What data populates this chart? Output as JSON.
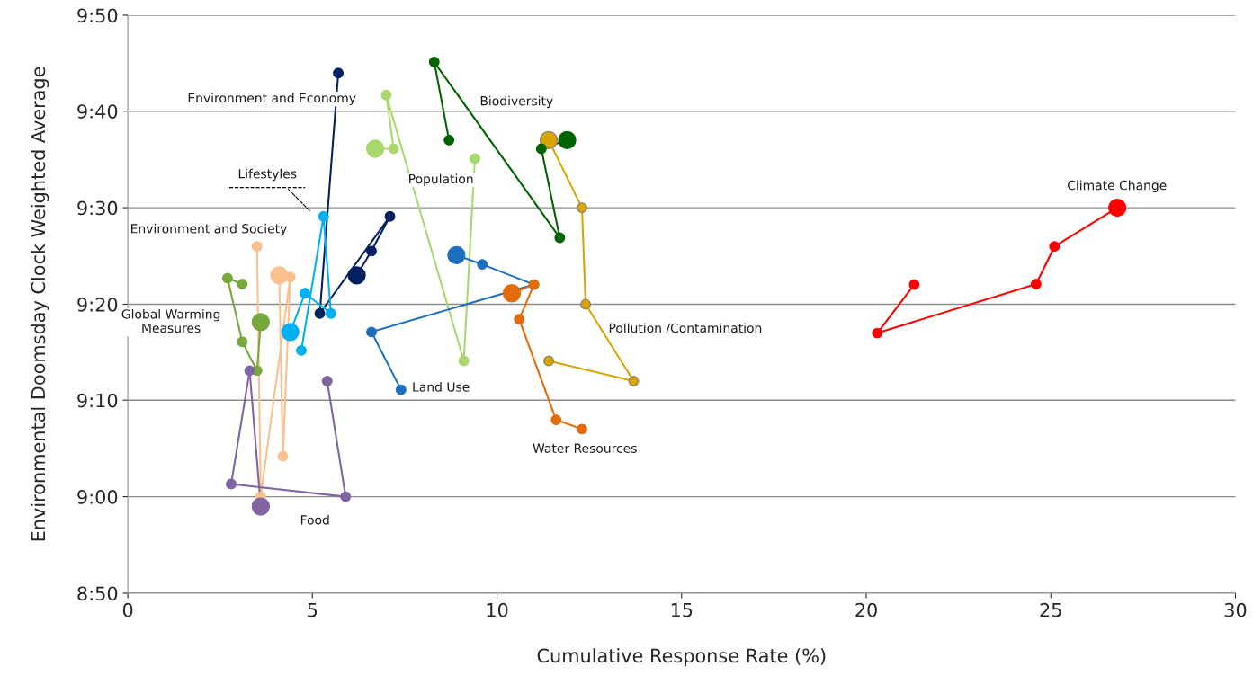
{
  "chart_data": {
    "type": "line",
    "xlabel": "Cumulative Response Rate (%)",
    "ylabel": "Environmental Doomsday Clock Weighted Average",
    "xlim": [
      0,
      30
    ],
    "xticks": [
      0,
      5,
      10,
      15,
      20,
      25,
      30
    ],
    "ylim": [
      8.833,
      9.833
    ],
    "yticks": [
      {
        "value": 8.833,
        "label": "8:50"
      },
      {
        "value": 9.0,
        "label": "9:00"
      },
      {
        "value": 9.167,
        "label": "9:10"
      },
      {
        "value": 9.333,
        "label": "9:20"
      },
      {
        "value": 9.5,
        "label": "9:30"
      },
      {
        "value": 9.667,
        "label": "9:40"
      },
      {
        "value": 9.833,
        "label": "9:50"
      }
    ],
    "grid": "y",
    "marker": "circle",
    "legend": false,
    "series": [
      {
        "name": "Climate Change",
        "color": "#ff0000",
        "x": [
          21.3,
          20.3,
          24.6,
          25.1,
          26.8
        ],
        "values": [
          9.367,
          9.283,
          9.368,
          9.433,
          9.5
        ]
      },
      {
        "name": "Pollution /Contamination",
        "color": "#d9a400",
        "x": [
          11.4,
          13.7,
          12.4,
          12.3,
          11.4
        ],
        "values": [
          9.235,
          9.2,
          9.333,
          9.5,
          9.617
        ]
      },
      {
        "name": "Biodiversity",
        "color": "#006400",
        "x": [
          8.7,
          8.3,
          11.7,
          11.2,
          11.9
        ],
        "values": [
          9.617,
          9.752,
          9.448,
          9.602,
          9.617
        ]
      },
      {
        "name": "Population",
        "color": "#a9d86e",
        "x": [
          9.4,
          9.1,
          7.0,
          7.2,
          6.7
        ],
        "values": [
          9.585,
          9.235,
          9.695,
          9.602,
          9.602
        ]
      },
      {
        "name": "Land Use",
        "color": "#1f6fbf",
        "x": [
          7.4,
          6.6,
          11.0,
          9.6,
          8.9
        ],
        "values": [
          9.185,
          9.285,
          9.367,
          9.402,
          9.418
        ]
      },
      {
        "name": "Water Resources",
        "color": "#e36c0a",
        "x": [
          12.3,
          11.6,
          10.6,
          11.0,
          10.4
        ],
        "values": [
          9.117,
          9.133,
          9.307,
          9.367,
          9.352
        ]
      },
      {
        "name": "Environment and Economy",
        "color": "#002060",
        "x": [
          5.7,
          5.2,
          7.1,
          6.6,
          6.2
        ],
        "values": [
          9.733,
          9.317,
          9.485,
          9.425,
          9.383
        ]
      },
      {
        "name": "Lifestyles",
        "color": "#00b0f0",
        "x": [
          4.7,
          5.3,
          5.5,
          4.8,
          4.4
        ],
        "values": [
          9.253,
          9.485,
          9.317,
          9.352,
          9.285
        ]
      },
      {
        "name": "Environment and Society",
        "color": "#fac090",
        "x": [
          3.5,
          3.6,
          4.4,
          4.2,
          4.1
        ],
        "values": [
          9.433,
          9.0,
          9.38,
          9.07,
          9.383
        ]
      },
      {
        "name": "Global Warming Measures",
        "color": "#77a83c",
        "x": [
          3.1,
          2.7,
          3.1,
          3.5,
          3.6
        ],
        "values": [
          9.368,
          9.378,
          9.268,
          9.218,
          9.302
        ]
      },
      {
        "name": "Food",
        "color": "#8064a2",
        "x": [
          5.4,
          5.9,
          2.8,
          3.3,
          3.6
        ],
        "values": [
          9.2,
          9.0,
          9.022,
          9.218,
          8.983
        ]
      }
    ]
  }
}
